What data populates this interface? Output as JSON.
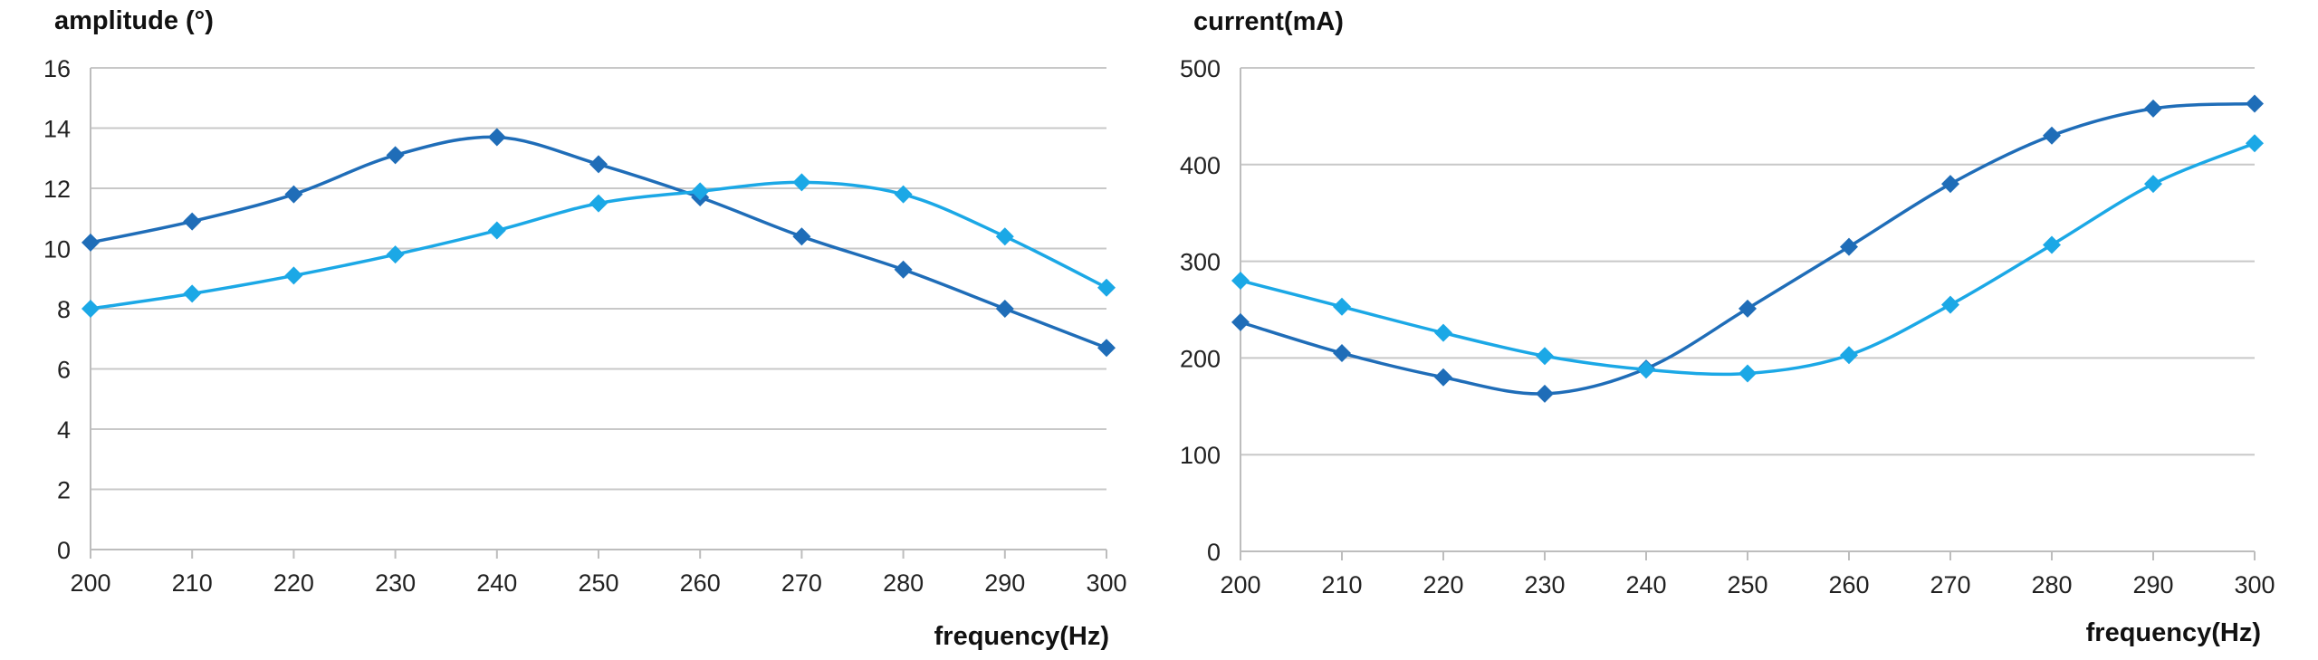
{
  "colors": {
    "dark_series": "#1f6db8",
    "light_series": "#1ba8e6",
    "grid": "#c8c8c8"
  },
  "chart_data": [
    {
      "type": "line",
      "ylabel": "amplitude (°)",
      "xlabel": "frequency(Hz)",
      "x": [
        200,
        210,
        220,
        230,
        240,
        250,
        260,
        270,
        280,
        290,
        300
      ],
      "xlim": [
        200,
        300
      ],
      "ylim": [
        0,
        16
      ],
      "yticks": [
        0,
        2,
        4,
        6,
        8,
        10,
        12,
        14,
        16
      ],
      "grid": true,
      "legend": "none",
      "marker": "diamond",
      "smooth": true,
      "series": [
        {
          "color": "#1f6db8",
          "values": [
            10.2,
            10.9,
            11.8,
            13.1,
            13.7,
            12.8,
            11.7,
            10.4,
            9.3,
            8.0,
            6.7
          ]
        },
        {
          "color": "#1ba8e6",
          "values": [
            8.0,
            8.5,
            9.1,
            9.8,
            10.6,
            11.5,
            11.9,
            12.2,
            11.8,
            10.4,
            8.7
          ]
        }
      ]
    },
    {
      "type": "line",
      "ylabel": "current(mA)",
      "xlabel": "frequency(Hz)",
      "x": [
        200,
        210,
        220,
        230,
        240,
        250,
        260,
        270,
        280,
        290,
        300
      ],
      "xlim": [
        200,
        300
      ],
      "ylim": [
        0,
        500
      ],
      "yticks": [
        0,
        100,
        200,
        300,
        400,
        500
      ],
      "grid": true,
      "legend": "none",
      "marker": "diamond",
      "smooth": true,
      "series": [
        {
          "color": "#1f6db8",
          "values": [
            237,
            205,
            180,
            163,
            189,
            251,
            315,
            380,
            430,
            458,
            463
          ]
        },
        {
          "color": "#1ba8e6",
          "values": [
            280,
            253,
            226,
            202,
            188,
            184,
            203,
            255,
            317,
            380,
            422
          ]
        }
      ]
    }
  ]
}
